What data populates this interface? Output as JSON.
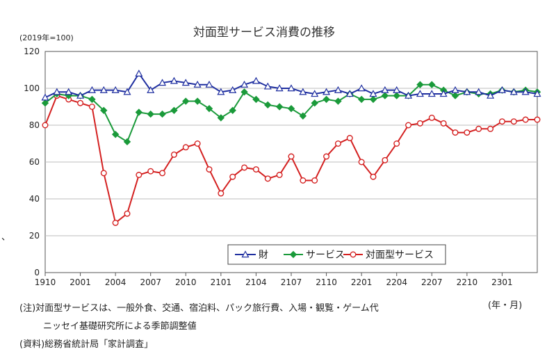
{
  "chart_data": {
    "type": "line",
    "title": "対面型サービス消費の推移",
    "y_unit_label": "(2019年=100)",
    "x_unit_label": "(年・月)",
    "ylim": [
      0,
      120
    ],
    "y_ticks": [
      0,
      20,
      40,
      60,
      80,
      100,
      120
    ],
    "x_tick_labels": [
      "1910",
      "2001",
      "2004",
      "2007",
      "2010",
      "2101",
      "2104",
      "2107",
      "2110",
      "2201",
      "2204",
      "2207",
      "2210",
      "2301"
    ],
    "grid": true,
    "legend_position": "bottom-center",
    "categories": [
      "1910",
      "1911",
      "1912",
      "2001",
      "2002",
      "2003",
      "2004",
      "2005",
      "2006",
      "2007",
      "2008",
      "2009",
      "2010",
      "2011",
      "2012",
      "2101",
      "2102",
      "2103",
      "2104",
      "2105",
      "2106",
      "2107",
      "2108",
      "2109",
      "2110",
      "2111",
      "2112",
      "2201",
      "2202",
      "2203",
      "2204",
      "2205",
      "2206",
      "2207",
      "2208",
      "2209",
      "2210",
      "2211",
      "2212",
      "2301",
      "2302",
      "2303",
      "2304"
    ],
    "series": [
      {
        "name": "財",
        "color": "#1f2fa0",
        "marker": "triangle",
        "values": [
          95,
          98,
          98,
          96,
          99,
          99,
          99,
          98,
          108,
          99,
          103,
          104,
          103,
          102,
          102,
          98,
          99,
          102,
          104,
          101,
          100,
          100,
          98,
          97,
          98,
          99,
          97,
          100,
          97,
          99,
          99,
          96,
          97,
          97,
          97,
          99,
          98,
          98,
          96,
          99,
          98,
          98,
          97
        ]
      },
      {
        "name": "サービス",
        "color": "#1a9a3a",
        "marker": "diamond",
        "values": [
          92,
          97,
          96,
          96,
          94,
          88,
          75,
          71,
          87,
          86,
          86,
          88,
          93,
          93,
          89,
          84,
          88,
          98,
          94,
          91,
          90,
          89,
          85,
          92,
          94,
          93,
          97,
          94,
          94,
          96,
          96,
          96,
          102,
          102,
          99,
          96,
          98,
          97,
          97,
          99,
          98,
          99,
          98
        ]
      },
      {
        "name": "対面型サービス",
        "color": "#d42020",
        "marker": "circle",
        "values": [
          80,
          96,
          94,
          92,
          90,
          54,
          27,
          32,
          53,
          55,
          54,
          64,
          68,
          70,
          56,
          43,
          52,
          57,
          56,
          51,
          53,
          63,
          50,
          50,
          63,
          70,
          73,
          60,
          52,
          61,
          70,
          80,
          81,
          84,
          81,
          76,
          76,
          78,
          78,
          82,
          82,
          83,
          83
        ]
      }
    ]
  },
  "notes": {
    "line1": "(注)対面型サービスは、一般外食、交通、宿泊料、パック旅行費、入場・観覧・ゲーム代",
    "line2": "ニッセイ基礎研究所による季節調整値",
    "line3": "(資料)総務省統計局「家計調査」"
  },
  "stray_mark": "、"
}
